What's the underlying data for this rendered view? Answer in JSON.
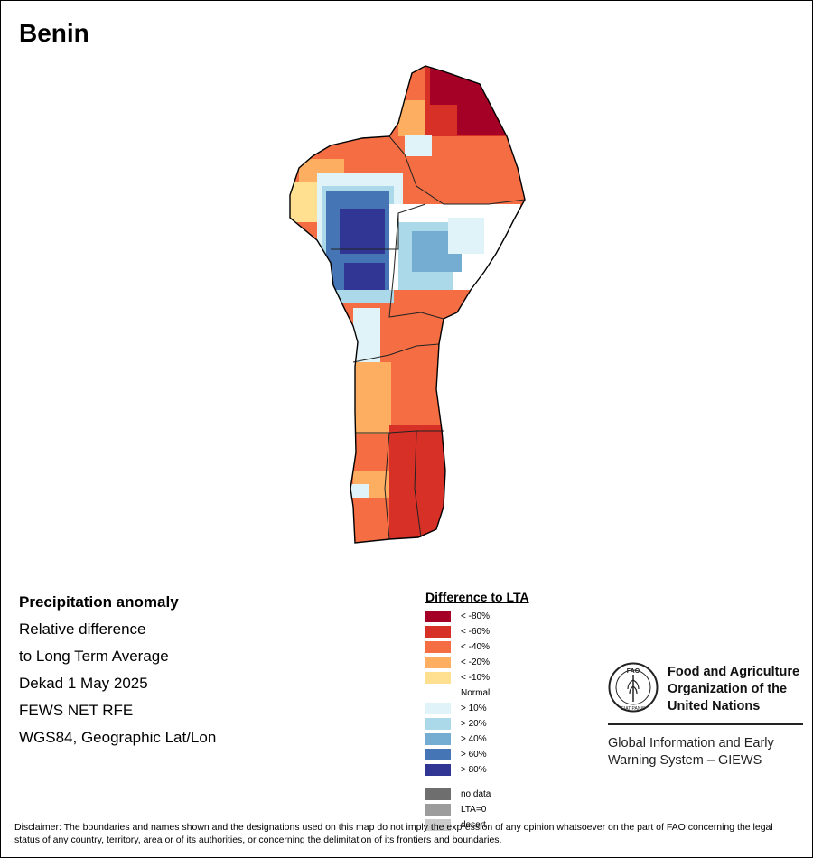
{
  "title": "Benin",
  "info": {
    "heading": "Precipitation anomaly",
    "lines": [
      "Relative difference",
      "to Long Term Average",
      "Dekad 1 May 2025",
      "FEWS NET RFE",
      "WGS84, Geographic Lat/Lon"
    ]
  },
  "legend": {
    "title": "Difference to LTA",
    "classes": [
      {
        "label": "< -80%",
        "color": "#a50026"
      },
      {
        "label": "< -60%",
        "color": "#d73027"
      },
      {
        "label": "< -40%",
        "color": "#f46d43"
      },
      {
        "label": "< -20%",
        "color": "#fdae61"
      },
      {
        "label": "< -10%",
        "color": "#fee090"
      },
      {
        "label": "Normal",
        "color": "#ffffff"
      },
      {
        "label": "> 10%",
        "color": "#e0f3f8"
      },
      {
        "label": "> 20%",
        "color": "#abd9e9"
      },
      {
        "label": "> 40%",
        "color": "#74add1"
      },
      {
        "label": "> 60%",
        "color": "#4575b4"
      },
      {
        "label": "> 80%",
        "color": "#313695"
      }
    ],
    "special": [
      {
        "label": "no data",
        "color": "#6e6e6e"
      },
      {
        "label": "LTA=0",
        "color": "#9c9c9c"
      },
      {
        "label": "desert",
        "color": "#cccccc"
      }
    ]
  },
  "fao": {
    "name": "Food and Agriculture\nOrganization of the\nUnited Nations",
    "logo_text": "FAO",
    "motto": "FIAT PANIS",
    "system": "Global Information and Early\nWarning System – GIEWS"
  },
  "disclaimer": "Disclaimer: The boundaries and names shown and the designations used on this map do not imply the expression of any opinion whatsoever on the part of FAO concerning the legal status of any country, territory, area or of its authorities, or concerning the delimitation of its frontiers and boundaries."
}
